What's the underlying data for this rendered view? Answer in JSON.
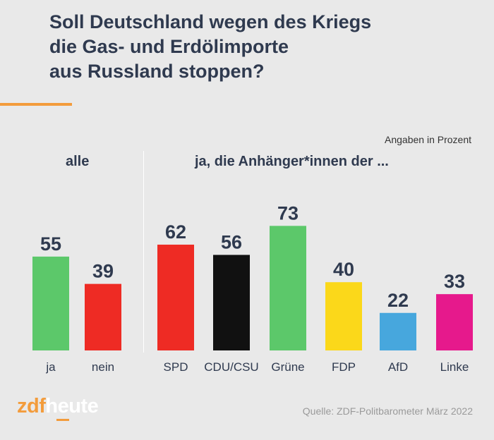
{
  "title": {
    "lines": [
      "Soll Deutschland wegen des Kriegs",
      "die Gas- und Erdölimporte",
      "aus Russland stoppen?"
    ]
  },
  "unit_note": "Angaben in Prozent",
  "group_labels": {
    "all": "alle",
    "parties": "ja, die Anhänger*innen der ..."
  },
  "chart_data": [
    {
      "type": "bar",
      "title": "alle",
      "categories": [
        "ja",
        "nein"
      ],
      "values": [
        55,
        39
      ],
      "colors": [
        "#5cc86a",
        "#ee2b24"
      ],
      "ylim": [
        0,
        100
      ]
    },
    {
      "type": "bar",
      "title": "ja, die Anhänger*innen der ...",
      "categories": [
        "SPD",
        "CDU/CSU",
        "Grüne",
        "FDP",
        "AfD",
        "Linke"
      ],
      "values": [
        62,
        56,
        73,
        40,
        22,
        33
      ],
      "colors": [
        "#ee2b24",
        "#111111",
        "#5cc86a",
        "#fbd81a",
        "#47a7dd",
        "#e6198c"
      ],
      "ylim": [
        0,
        100
      ]
    }
  ],
  "footer": {
    "brand_zdf": "zdf",
    "brand_heute": "heute",
    "source": "Quelle: ZDF-Politbarometer März 2022"
  }
}
